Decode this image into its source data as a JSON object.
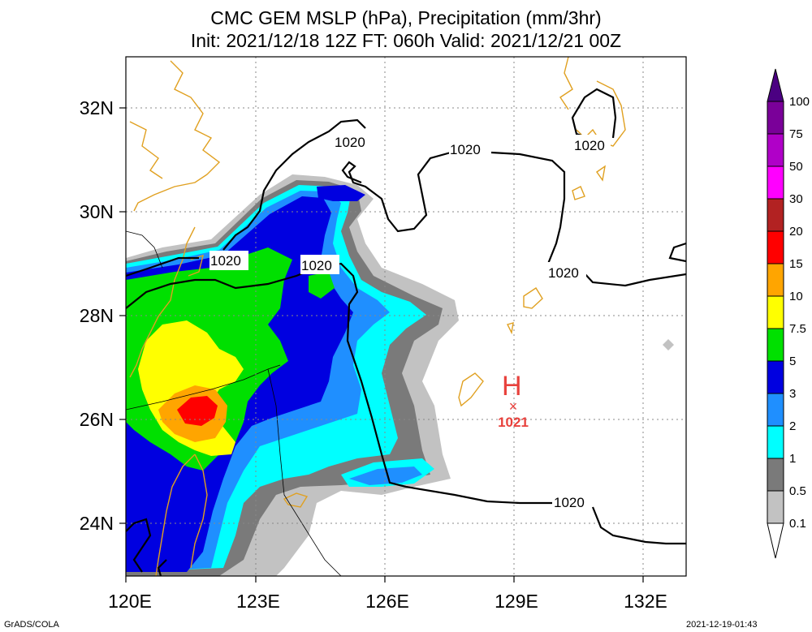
{
  "title": {
    "line1": "CMC GEM MSLP (hPa), Precipitation (mm/3hr)",
    "line2": "Init: 2021/12/18 12Z  FT: 060h  Valid: 2021/12/21 00Z"
  },
  "axes": {
    "x_ticks": [
      "120E",
      "123E",
      "126E",
      "129E",
      "132E"
    ],
    "y_ticks": [
      "32N",
      "30N",
      "28N",
      "26N",
      "24N"
    ],
    "lon_range": [
      120,
      133
    ],
    "lat_range": [
      23,
      33
    ]
  },
  "isobar_labels": [
    "1020",
    "1020",
    "1020",
    "1020",
    "1020",
    "1020",
    "1020"
  ],
  "high": {
    "symbol": "H",
    "pressure": "1021",
    "lon": 129.0,
    "lat": 26.3,
    "color": "#e8413c"
  },
  "colorbar": {
    "labels": [
      "100",
      "75",
      "50",
      "30",
      "20",
      "15",
      "10",
      "7.5",
      "5",
      "3",
      "2",
      "1",
      "0.5",
      "0.1"
    ],
    "colors": [
      "#7a0099",
      "#b000c8",
      "#ff00ff",
      "#b22222",
      "#ff0000",
      "#ffa500",
      "#ffff00",
      "#00e000",
      "#0000e0",
      "#1f8fff",
      "#00ffff",
      "#7a7a7a",
      "#c2c2c2"
    ]
  },
  "footer": {
    "left": "GrADS/COLA",
    "right": "2021-12-19-01:43"
  }
}
